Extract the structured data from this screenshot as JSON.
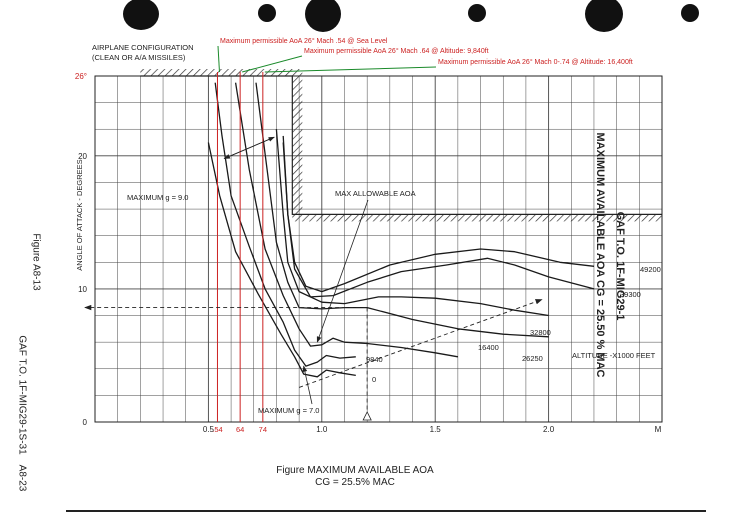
{
  "page": {
    "right_title": "GAF T.O. 1F-MIG29-1",
    "right_subtitle": "MAXIMUM AVAILABLE AOA CG = 25.50 % MAC",
    "left_figure": "Figure A8-13",
    "left_footer": "GAF T.O. 1F-MIG29-1S-31",
    "left_page": "A8-23",
    "caption_line1": "Figure MAXIMUM AVAILABLE AOA",
    "caption_line2": "CG = 25.5% MAC"
  },
  "chart_data": {
    "type": "line",
    "title": "",
    "xlabel": "M",
    "ylabel": "ANGLE OF ATTACK - DEGREES",
    "xlim": [
      0,
      2.5
    ],
    "ylim": [
      0,
      26
    ],
    "x_ticks": [
      {
        "value": 0.5,
        "label": "0.5"
      },
      {
        "value": 1.0,
        "label": "1.0"
      },
      {
        "value": 1.5,
        "label": "1.5"
      },
      {
        "value": 2.0,
        "label": "2.0"
      }
    ],
    "x_unit_label": "M",
    "y_ticks": [
      {
        "value": 0,
        "label": "0"
      },
      {
        "value": 10,
        "label": "10"
      },
      {
        "value": 20,
        "label": "20"
      },
      {
        "value": 26,
        "label": "26°"
      }
    ],
    "red_mach_ticks": [
      {
        "value": 0.54,
        "label": ".54"
      },
      {
        "value": 0.64,
        "label": "64"
      },
      {
        "value": 0.74,
        "label": "74"
      }
    ],
    "series": [
      {
        "name": "49200",
        "points": [
          [
            0.83,
            21.5
          ],
          [
            0.85,
            15.6
          ],
          [
            0.88,
            12.0
          ],
          [
            0.93,
            10.2
          ],
          [
            1.0,
            9.8
          ],
          [
            1.1,
            10.4
          ],
          [
            1.3,
            11.8
          ],
          [
            1.5,
            12.6
          ],
          [
            1.7,
            13.0
          ],
          [
            1.85,
            12.8
          ],
          [
            2.05,
            12.0
          ],
          [
            2.2,
            11.7
          ]
        ]
      },
      {
        "name": "39300",
        "points": [
          [
            0.83,
            21.0
          ],
          [
            0.85,
            15.6
          ],
          [
            0.88,
            11.5
          ],
          [
            0.95,
            9.4
          ],
          [
            1.05,
            9.5
          ],
          [
            1.2,
            10.5
          ],
          [
            1.35,
            11.3
          ],
          [
            1.55,
            11.8
          ],
          [
            1.73,
            12.3
          ],
          [
            1.85,
            11.8
          ],
          [
            2.0,
            10.9
          ],
          [
            2.2,
            10.0
          ]
        ]
      },
      {
        "name": "32800",
        "points": [
          [
            0.8,
            22.0
          ],
          [
            0.83,
            15.6
          ],
          [
            0.85,
            12.0
          ],
          [
            0.9,
            9.8
          ],
          [
            1.0,
            9.0
          ],
          [
            1.1,
            8.9
          ],
          [
            1.25,
            9.4
          ],
          [
            1.35,
            9.4
          ],
          [
            1.5,
            9.3
          ],
          [
            1.7,
            8.9
          ],
          [
            1.85,
            8.4
          ],
          [
            2.0,
            8.0
          ]
        ]
      },
      {
        "name": "26250",
        "points": [
          [
            0.71,
            25.5
          ],
          [
            0.74,
            21.5
          ],
          [
            0.8,
            13.5
          ],
          [
            0.85,
            10.5
          ],
          [
            0.9,
            8.6
          ],
          [
            1.0,
            8.5
          ],
          [
            1.1,
            8.6
          ],
          [
            1.2,
            8.6
          ],
          [
            1.4,
            7.7
          ],
          [
            1.6,
            7.0
          ],
          [
            1.8,
            6.6
          ],
          [
            2.0,
            6.4
          ]
        ]
      },
      {
        "name": "16400",
        "points": [
          [
            0.62,
            25.5
          ],
          [
            0.68,
            19.0
          ],
          [
            0.75,
            13.0
          ],
          [
            0.83,
            9.5
          ],
          [
            0.9,
            7.0
          ],
          [
            0.95,
            5.7
          ],
          [
            1.0,
            5.8
          ],
          [
            1.05,
            6.3
          ],
          [
            1.1,
            6.0
          ],
          [
            1.2,
            5.9
          ],
          [
            1.35,
            5.6
          ],
          [
            1.5,
            5.2
          ],
          [
            1.6,
            4.9
          ]
        ]
      },
      {
        "name": "9840",
        "points": [
          [
            0.53,
            25.5
          ],
          [
            0.56,
            21.5
          ],
          [
            0.6,
            17.0
          ],
          [
            0.68,
            13.2
          ],
          [
            0.75,
            10.0
          ],
          [
            0.83,
            7.5
          ],
          [
            0.88,
            5.4
          ],
          [
            0.93,
            4.2
          ],
          [
            0.98,
            4.5
          ],
          [
            1.02,
            5.0
          ],
          [
            1.08,
            4.8
          ],
          [
            1.15,
            4.9
          ]
        ]
      },
      {
        "name": "0",
        "points": [
          [
            0.5,
            21.0
          ],
          [
            0.55,
            17.0
          ],
          [
            0.62,
            12.8
          ],
          [
            0.72,
            9.6
          ],
          [
            0.82,
            6.6
          ],
          [
            0.88,
            4.9
          ],
          [
            0.92,
            3.6
          ],
          [
            0.98,
            3.4
          ],
          [
            1.02,
            3.9
          ],
          [
            1.08,
            3.7
          ],
          [
            1.15,
            3.5
          ]
        ]
      }
    ],
    "limit_hatch": {
      "top_aoa": 26,
      "vertical_x": 0.87,
      "step_aoa": 15.6,
      "step_x_end": 2.5
    },
    "labels": {
      "airplane_config_1": "AIRPLANE CONFIGURATION",
      "airplane_config_2": "(CLEAN OR A/A MISSILES)",
      "max_allowable": "MAX ALLOWABLE AOA",
      "max_g9": "MAXIMUM g = 9.0",
      "max_g7": "MAXIMUM g = 7.0",
      "altitude": "ALTITUDE -X1000 FEET"
    },
    "annotations": [
      {
        "text": "Maximum permissible AoA 26° Mach .54 @ Sea Level",
        "color": "#cc2222"
      },
      {
        "text": "Maximum permissible AoA 26° Mach .64 @ Altitude: 9,840ft",
        "color": "#cc2222"
      },
      {
        "text": "Maximum permissible AoA 26° Mach 0-.74 @ Altitude: 16,400ft",
        "color": "#cc2222"
      }
    ],
    "example": {
      "mach": 1.2,
      "aoa": 8.6
    },
    "colors": {
      "grid": "#444444",
      "curve": "#1a1a1a",
      "red": "#cc2222",
      "green": "#1a8a2a",
      "hatch": "#333333"
    }
  }
}
